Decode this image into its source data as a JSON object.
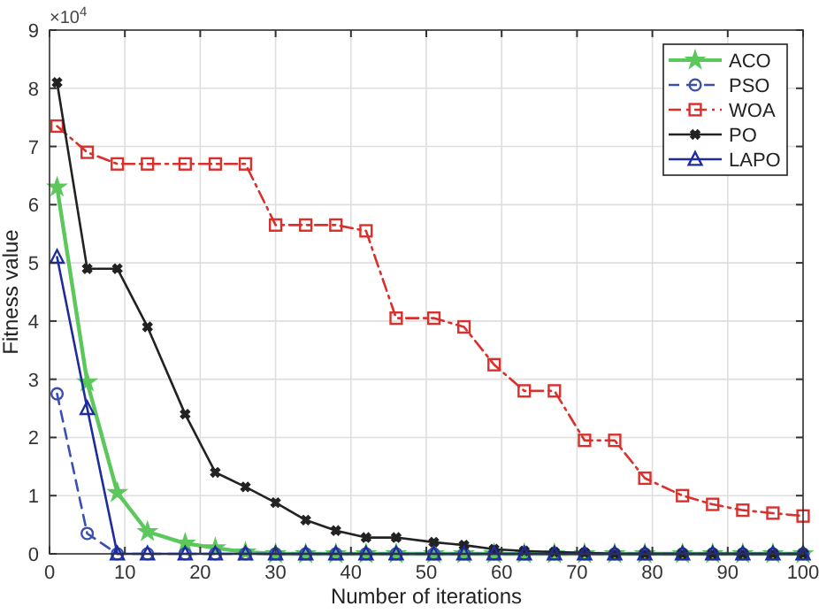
{
  "chart_data": {
    "type": "line",
    "xlabel": "Number of iterations",
    "ylabel": "Fitness value",
    "annotations": [
      "×10$^{4}$"
    ],
    "x": [
      1,
      5,
      9,
      13,
      18,
      22,
      26,
      30,
      34,
      38,
      42,
      46,
      51,
      55,
      59,
      63,
      67,
      71,
      75,
      79,
      84,
      88,
      92,
      96,
      100
    ],
    "xlim": [
      0,
      100
    ],
    "xticks": [
      0,
      10,
      20,
      30,
      40,
      50,
      60,
      70,
      80,
      90,
      100
    ],
    "ylim": [
      0,
      9
    ],
    "yticks": [
      0,
      1,
      2,
      3,
      4,
      5,
      6,
      7,
      8,
      9
    ],
    "grid": true,
    "legend": "top right",
    "series": [
      {
        "name": "ACO",
        "color": "#5cc85c",
        "marker": "star",
        "line_style": "solid",
        "values": [
          6.3,
          2.95,
          1.05,
          0.38,
          0.18,
          0.1,
          0.03,
          0,
          0,
          0,
          0,
          0,
          0,
          0,
          0,
          0,
          0,
          0,
          0,
          0,
          0,
          0,
          0,
          0,
          0
        ]
      },
      {
        "name": "PSO",
        "color": "#3a4fb0",
        "marker": "circle",
        "line_style": "dashed",
        "values": [
          2.75,
          0.35,
          0,
          0,
          0,
          0,
          0,
          0,
          0,
          0,
          0,
          0,
          0,
          0,
          0,
          0,
          0,
          0,
          0,
          0,
          0,
          0,
          0,
          0,
          0
        ]
      },
      {
        "name": "WOA",
        "color": "#d9302c",
        "marker": "square",
        "line_style": "dashdot",
        "values": [
          7.35,
          6.9,
          6.7,
          6.7,
          6.7,
          6.7,
          6.7,
          5.65,
          5.65,
          5.65,
          5.55,
          4.05,
          4.05,
          3.9,
          3.25,
          2.8,
          2.8,
          1.95,
          1.95,
          1.3,
          1.0,
          0.85,
          0.75,
          0.7,
          0.65
        ]
      },
      {
        "name": "PO",
        "color": "#222222",
        "marker": "cross",
        "line_style": "solid",
        "values": [
          8.1,
          4.9,
          4.9,
          3.9,
          2.4,
          1.4,
          1.15,
          0.88,
          0.58,
          0.4,
          0.28,
          0.28,
          0.2,
          0.15,
          0.08,
          0.05,
          0.03,
          0.02,
          0,
          0,
          0,
          0,
          0,
          0,
          0
        ]
      },
      {
        "name": "LAPO",
        "color": "#1f2c9c",
        "marker": "triangle",
        "line_style": "solid",
        "values": [
          5.1,
          2.5,
          0,
          0,
          0,
          0,
          0,
          0,
          0,
          0,
          0,
          0,
          0,
          0,
          0,
          0,
          0,
          0,
          0,
          0,
          0,
          0,
          0,
          0,
          0
        ]
      }
    ]
  }
}
